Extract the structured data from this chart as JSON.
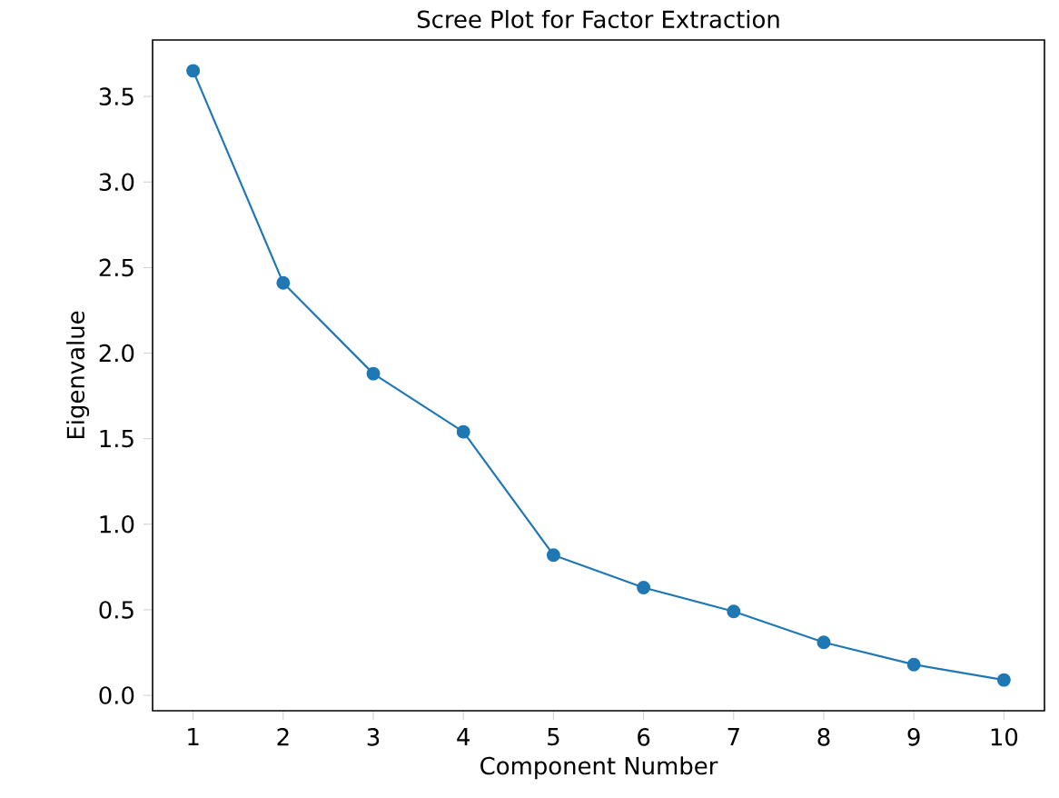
{
  "chart_data": {
    "type": "line",
    "title": "Scree Plot for Factor Extraction",
    "xlabel": "Component Number",
    "ylabel": "Eigenvalue",
    "x": [
      1,
      2,
      3,
      4,
      5,
      6,
      7,
      8,
      9,
      10
    ],
    "series": [
      {
        "color": "#1f77b4",
        "values": [
          3.65,
          2.41,
          1.88,
          1.54,
          0.82,
          0.63,
          0.49,
          0.31,
          0.18,
          0.09
        ]
      }
    ],
    "xlim": [
      0.55,
      10.45
    ],
    "ylim": [
      -0.09,
      3.83
    ],
    "xticks": [
      1,
      2,
      3,
      4,
      5,
      6,
      7,
      8,
      9,
      10
    ],
    "yticks": [
      {
        "value": 0,
        "label": "0.0"
      },
      {
        "value": 0.5,
        "label": "0.5"
      },
      {
        "value": 1,
        "label": "1.0"
      },
      {
        "value": 1.5,
        "label": "1.5"
      },
      {
        "value": 2,
        "label": "2.0"
      },
      {
        "value": 2.5,
        "label": "2.5"
      },
      {
        "value": 3,
        "label": "3.0"
      },
      {
        "value": 3.5,
        "label": "3.5"
      }
    ],
    "marker": "circle",
    "line_style": "solid"
  }
}
